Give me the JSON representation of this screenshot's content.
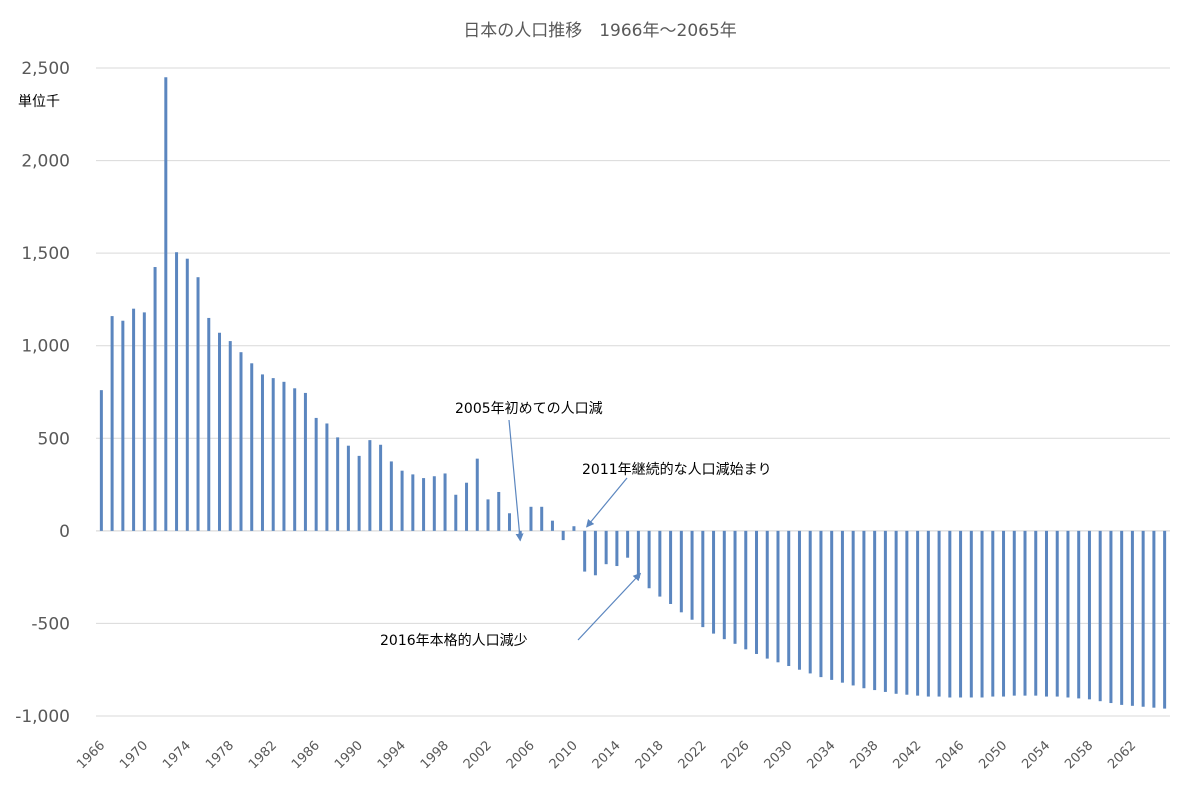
{
  "chart_data": {
    "type": "bar",
    "title": "日本の人口推移　1966年～2065年",
    "unit_label": "単位千",
    "xlabel": "",
    "ylabel": "",
    "ylim": [
      -1000,
      2500
    ],
    "y_ticks": [
      2500,
      2000,
      1500,
      1000,
      500,
      0,
      -500,
      -1000
    ],
    "y_tick_labels": [
      "2,500",
      "2,000",
      "1,500",
      "1,000",
      "500",
      "0",
      "-500",
      "-1,000"
    ],
    "x_tick_labels": [
      "1966",
      "1970",
      "1974",
      "1978",
      "1982",
      "1986",
      "1990",
      "1994",
      "1998",
      "2002",
      "2006",
      "2010",
      "2014",
      "2018",
      "2022",
      "2026",
      "2030",
      "2034",
      "2038",
      "2042",
      "2046",
      "2050",
      "2054",
      "2058",
      "2062"
    ],
    "grid": true,
    "legend": "none",
    "bar_color": "#5B86BF",
    "grid_color": "#d9d9d9",
    "categories": [
      "1966",
      "1967",
      "1968",
      "1969",
      "1970",
      "1971",
      "1972",
      "1973",
      "1974",
      "1975",
      "1976",
      "1977",
      "1978",
      "1979",
      "1980",
      "1981",
      "1982",
      "1983",
      "1984",
      "1985",
      "1986",
      "1987",
      "1988",
      "1989",
      "1990",
      "1991",
      "1992",
      "1993",
      "1994",
      "1995",
      "1996",
      "1997",
      "1998",
      "1999",
      "2000",
      "2001",
      "2002",
      "2003",
      "2004",
      "2005",
      "2006",
      "2007",
      "2008",
      "2009",
      "2010",
      "2011",
      "2012",
      "2013",
      "2014",
      "2015",
      "2016",
      "2017",
      "2018",
      "2019",
      "2020",
      "2021",
      "2022",
      "2023",
      "2024",
      "2025",
      "2026",
      "2027",
      "2028",
      "2029",
      "2030",
      "2031",
      "2032",
      "2033",
      "2034",
      "2035",
      "2036",
      "2037",
      "2038",
      "2039",
      "2040",
      "2041",
      "2042",
      "2043",
      "2044",
      "2045",
      "2046",
      "2047",
      "2048",
      "2049",
      "2050",
      "2051",
      "2052",
      "2053",
      "2054",
      "2055",
      "2056",
      "2057",
      "2058",
      "2059",
      "2060",
      "2061",
      "2062",
      "2063",
      "2064",
      "2065"
    ],
    "values": [
      760,
      1160,
      1135,
      1200,
      1180,
      1425,
      2450,
      1505,
      1470,
      1370,
      1150,
      1070,
      1025,
      965,
      905,
      845,
      825,
      805,
      770,
      745,
      610,
      580,
      505,
      460,
      405,
      490,
      465,
      375,
      325,
      305,
      285,
      295,
      310,
      195,
      260,
      390,
      170,
      210,
      95,
      -20,
      130,
      130,
      55,
      -50,
      25,
      -220,
      -240,
      -180,
      -190,
      -145,
      -255,
      -310,
      -355,
      -395,
      -440,
      -480,
      -520,
      -555,
      -585,
      -610,
      -640,
      -665,
      -690,
      -710,
      -730,
      -750,
      -770,
      -790,
      -805,
      -820,
      -835,
      -850,
      -860,
      -870,
      -880,
      -885,
      -890,
      -895,
      -895,
      -900,
      -900,
      -900,
      -900,
      -895,
      -895,
      -890,
      -890,
      -890,
      -895,
      -895,
      -900,
      -905,
      -910,
      -920,
      -930,
      -940,
      -945,
      -950,
      -955,
      -960
    ],
    "annotations": [
      {
        "text": "2005年初めての人口減",
        "target": "2005"
      },
      {
        "text": "2011年継続的な人口減始まり",
        "target": "2011"
      },
      {
        "text": "2016年本格的人口減少",
        "target": "2016"
      }
    ]
  }
}
